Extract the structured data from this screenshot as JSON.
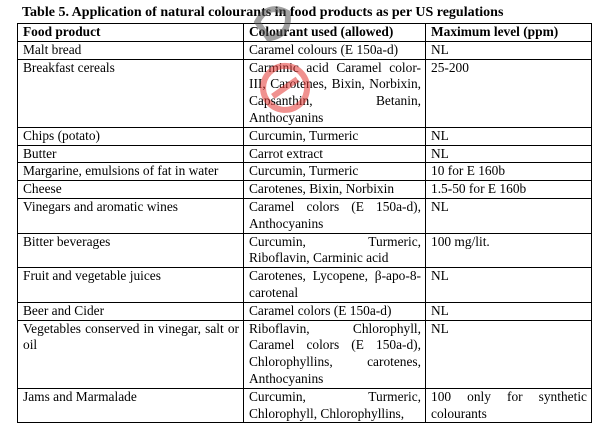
{
  "title": "Table 5. Application of natural colourants in food products as per US regulations",
  "headers": [
    "Food product",
    "Colourant used (allowed)",
    "Maximum level (ppm)"
  ],
  "rows": [
    [
      "Malt bread",
      "Caramel colours (E 150a-d)",
      "NL"
    ],
    [
      "Breakfast cereals",
      "Carminic acid Caramel color-III, Carotenes, Bixin, Norbixin, Capsanthin, Betanin, Anthocyanins",
      "25-200"
    ],
    [
      "Chips (potato)",
      "Curcumin, Turmeric",
      "NL"
    ],
    [
      "Butter",
      "Carrot extract",
      "NL"
    ],
    [
      "Margarine, emulsions of fat in water",
      "Curcumin, Turmeric",
      "10 for E 160b"
    ],
    [
      "Cheese",
      "Carotenes, Bixin, Norbixin",
      "1.5-50 for E 160b"
    ],
    [
      "Vinegars and aromatic wines",
      "Caramel colors (E 150a-d), Anthocyanins",
      "NL"
    ],
    [
      "Bitter beverages",
      "Curcumin, Turmeric, Riboflavin, Carminic acid",
      "100 mg/lit."
    ],
    [
      "Fruit and vegetable juices",
      "Carotenes, Lycopene, β-apo-8-carotenal",
      "NL"
    ],
    [
      "Beer and Cider",
      "Caramel colors (E 150a-d)",
      "NL"
    ],
    [
      "Vegetables conserved in vinegar, salt or oil",
      "Riboflavin, Chlorophyll, Caramel colors (E 150a-d), Chlorophyllins, carotenes, Anthocyanins",
      "NL"
    ],
    [
      "Jams and Marmalade",
      "Curcumin, Turmeric, Chlorophyll, Chlorophyllins,",
      "100 only for synthetic colourants"
    ]
  ],
  "watermark": {
    "text": "Pathshala",
    "color": "#e53935"
  }
}
